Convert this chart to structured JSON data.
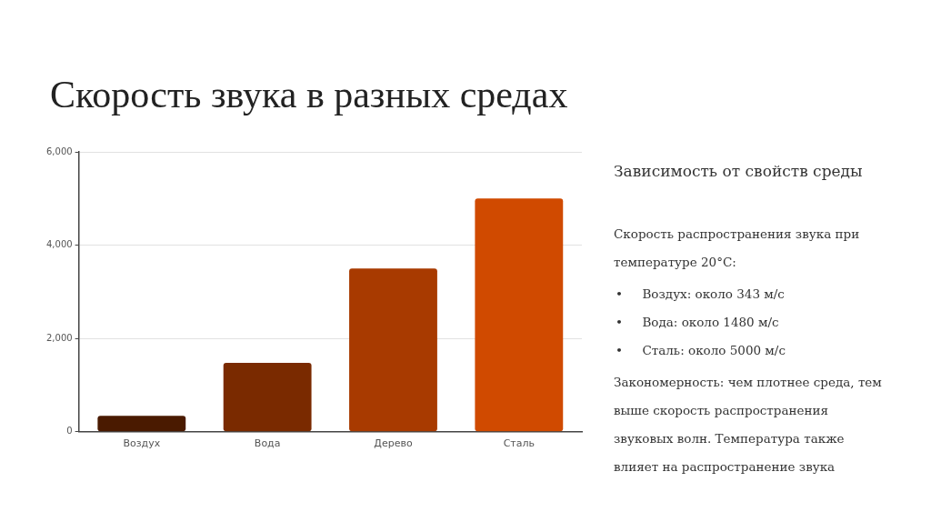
{
  "chart_data": {
    "type": "bar",
    "title": "Скорость звука в разных средах",
    "categories": [
      "Воздух",
      "Вода",
      "Дерево",
      "Сталь"
    ],
    "values": [
      340,
      1480,
      3500,
      5000
    ],
    "colors": [
      "#4a1a00",
      "#7a2a00",
      "#a83a00",
      "#d04a00"
    ],
    "ylim": [
      0,
      6000
    ],
    "yticks": [
      0,
      {
        "value": 2000,
        "label": "2,000"
      },
      {
        "value": 4000,
        "label": "4,000"
      },
      {
        "value": 6000,
        "label": "6,000"
      }
    ],
    "grid": "y",
    "annotations": [
      "Зависимость от свойств среды",
      "Скорость распространения звука при температуре 20°C:",
      "•     Воздух: около 343 м/с",
      "•     Вода: около 1480 м/с",
      "•     Сталь: около 5000 м/с",
      "Закономерность: чем плотнее среда, тем выше скорость распространения звуковых волн. Температура также влияет на распространение звука"
    ]
  }
}
